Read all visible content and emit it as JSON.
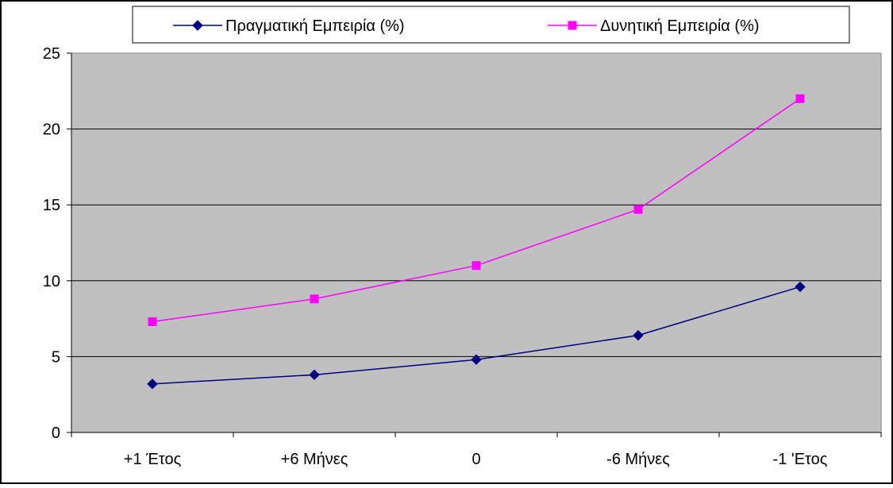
{
  "chart_data": {
    "type": "line",
    "categories": [
      "+1 Έτος",
      "+6 Μήνες",
      "0",
      "-6 Μήνες",
      "-1 'Ετος"
    ],
    "series": [
      {
        "name": "Πραγματική Εμπειρία (%)",
        "values": [
          3.2,
          3.8,
          4.8,
          6.4,
          9.6
        ],
        "color": "#000080",
        "marker": "diamond"
      },
      {
        "name": "Δυνητική Εμπειρία (%)",
        "values": [
          7.3,
          8.8,
          11.0,
          14.7,
          22.0
        ],
        "color": "#ff00ff",
        "marker": "square"
      }
    ],
    "ylim": [
      0,
      25
    ],
    "yticks": [
      0,
      5,
      10,
      15,
      20,
      25
    ],
    "ytick_labels": [
      "0",
      "5",
      "10",
      "15",
      "20",
      "25"
    ],
    "grid": "horizontal",
    "plot_background": "#c0c0c0",
    "legend_position": "top"
  }
}
